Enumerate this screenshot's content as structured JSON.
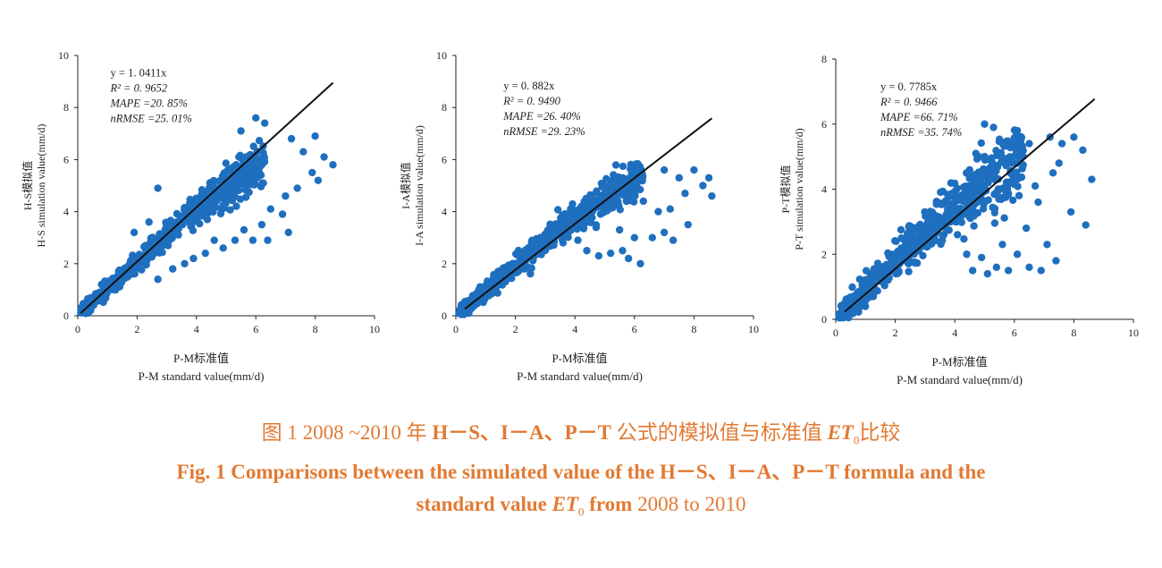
{
  "chart_data": [
    {
      "type": "scatter",
      "xlabel_cn": "P-M标准值",
      "xlabel_en": "P-M standard value(mm/d)",
      "ylabel_cn": "H-S模拟值",
      "ylabel_en": "H-S simulation value(mm/d)",
      "xlim": [
        0,
        10
      ],
      "ylim": [
        0,
        10
      ],
      "xticks": [
        0,
        2,
        4,
        6,
        8,
        10
      ],
      "yticks": [
        0,
        2,
        4,
        6,
        8,
        10
      ],
      "fit_slope": 1.0411,
      "fit_xrange": [
        0.1,
        8.6
      ],
      "stats": {
        "eq": "y = 1. 0411x",
        "r2": "R² = 0. 9652",
        "mape": "MAPE =20. 85%",
        "nrmse": "nRMSE =25. 01%"
      },
      "marker_color": "#1f6fbf",
      "outliers": [
        [
          7.2,
          6.8
        ],
        [
          7.6,
          6.3
        ],
        [
          8.0,
          6.9
        ],
        [
          8.3,
          6.1
        ],
        [
          8.6,
          5.8
        ],
        [
          7.9,
          5.5
        ],
        [
          8.1,
          5.2
        ],
        [
          7.4,
          4.9
        ],
        [
          7.0,
          4.6
        ],
        [
          6.9,
          3.9
        ],
        [
          6.5,
          4.1
        ],
        [
          6.2,
          3.5
        ],
        [
          7.1,
          3.2
        ],
        [
          5.9,
          2.9
        ],
        [
          5.6,
          3.3
        ],
        [
          4.9,
          2.6
        ],
        [
          4.3,
          2.4
        ],
        [
          3.9,
          2.2
        ],
        [
          3.6,
          2.0
        ],
        [
          3.2,
          1.8
        ],
        [
          2.7,
          1.4
        ],
        [
          5.3,
          2.9
        ],
        [
          6.4,
          2.9
        ],
        [
          4.6,
          2.9
        ],
        [
          6.0,
          7.6
        ],
        [
          6.3,
          7.4
        ],
        [
          5.5,
          7.1
        ],
        [
          2.7,
          4.9
        ],
        [
          1.9,
          3.2
        ],
        [
          2.4,
          3.6
        ]
      ]
    },
    {
      "type": "scatter",
      "xlabel_cn": "P-M标准值",
      "xlabel_en": "P-M standard value(mm/d)",
      "ylabel_cn": "I-A模拟值",
      "ylabel_en": "I-A simulation value(mm/d)",
      "xlim": [
        0,
        10
      ],
      "ylim": [
        0,
        10
      ],
      "xticks": [
        0,
        2,
        4,
        6,
        8,
        10
      ],
      "yticks": [
        0,
        2,
        4,
        6,
        8,
        10
      ],
      "fit_slope": 0.882,
      "fit_xrange": [
        0.3,
        8.6
      ],
      "stats": {
        "eq": "y = 0. 882x",
        "r2": "R² = 0. 9490",
        "mape": "MAPE =26. 40%",
        "nrmse": "nRMSE =29. 23%"
      },
      "marker_color": "#1f6fbf",
      "outliers": [
        [
          7.0,
          5.6
        ],
        [
          7.5,
          5.3
        ],
        [
          8.0,
          5.6
        ],
        [
          8.3,
          5.0
        ],
        [
          8.6,
          4.6
        ],
        [
          7.7,
          4.7
        ],
        [
          7.2,
          4.1
        ],
        [
          6.8,
          4.0
        ],
        [
          6.6,
          3.0
        ],
        [
          6.0,
          3.0
        ],
        [
          5.6,
          2.5
        ],
        [
          5.2,
          2.4
        ],
        [
          4.8,
          2.3
        ],
        [
          4.4,
          2.5
        ],
        [
          4.1,
          2.9
        ],
        [
          3.6,
          2.8
        ],
        [
          6.2,
          2.0
        ],
        [
          5.8,
          2.2
        ],
        [
          7.0,
          3.2
        ],
        [
          7.3,
          2.9
        ],
        [
          8.5,
          5.3
        ],
        [
          6.3,
          4.4
        ],
        [
          5.5,
          3.3
        ],
        [
          7.8,
          3.5
        ]
      ]
    },
    {
      "type": "scatter",
      "xlabel_cn": "P-M标准值",
      "xlabel_en": "P-M standard value(mm/d)",
      "ylabel_cn": "P-T模拟值",
      "ylabel_en": "P-T simulation value(mm/d)",
      "xlim": [
        0,
        10
      ],
      "ylim": [
        0,
        8
      ],
      "xticks": [
        0,
        2,
        4,
        6,
        8,
        10
      ],
      "yticks": [
        0,
        2,
        4,
        6,
        8
      ],
      "fit_slope": 0.7785,
      "fit_xrange": [
        0.3,
        8.7
      ],
      "stats": {
        "eq": "y = 0. 7785x",
        "r2": "R² = 0. 9466",
        "mape": "MAPE =66. 71%",
        "nrmse": "nRMSE =35. 74%"
      },
      "marker_color": "#1f6fbf",
      "outliers": [
        [
          7.2,
          5.6
        ],
        [
          7.6,
          5.4
        ],
        [
          8.0,
          5.6
        ],
        [
          8.3,
          5.2
        ],
        [
          8.6,
          4.3
        ],
        [
          7.5,
          4.8
        ],
        [
          7.9,
          3.3
        ],
        [
          8.4,
          2.9
        ],
        [
          7.1,
          2.3
        ],
        [
          6.9,
          1.5
        ],
        [
          7.4,
          1.8
        ],
        [
          6.5,
          1.6
        ],
        [
          6.1,
          2.0
        ],
        [
          5.8,
          1.5
        ],
        [
          5.4,
          1.6
        ],
        [
          5.1,
          1.4
        ],
        [
          4.6,
          1.5
        ],
        [
          4.9,
          1.9
        ],
        [
          6.4,
          2.8
        ],
        [
          6.8,
          3.6
        ],
        [
          6.7,
          4.1
        ],
        [
          5.6,
          2.3
        ],
        [
          5.0,
          6.0
        ],
        [
          5.3,
          5.9
        ],
        [
          6.1,
          5.8
        ],
        [
          6.5,
          5.4
        ],
        [
          7.3,
          4.5
        ],
        [
          4.4,
          2.0
        ]
      ]
    }
  ],
  "caption": {
    "zh_prefix": "图 1    2008 ~2010 年 ",
    "zh_bold": "H－S、I－A、P－T",
    "zh_mid": " 公式的模拟值与标准值 ",
    "zh_et": "ET",
    "zh_sub": "0",
    "zh_suffix": "比较",
    "en_line1": "Fig. 1    Comparisons between the simulated value of the H－S、I－A、P－T formula and the",
    "en_line2_a": "standard value ",
    "en_et": "ET",
    "en_sub": "0",
    "en_line2_b": " from ",
    "en_years": "2008 to 2010"
  }
}
